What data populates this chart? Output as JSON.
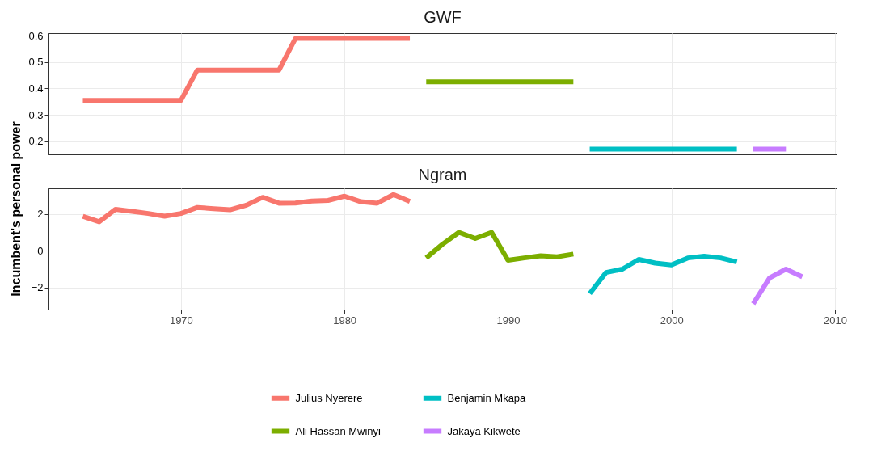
{
  "chart_data": [
    {
      "type": "line",
      "title": "GWF",
      "ylabel": "Incumbent's personal power",
      "xlim": [
        1961.9,
        2010.1
      ],
      "xticks": [
        1970,
        1980,
        1990,
        2000,
        2010
      ],
      "ylim": [
        0.15,
        0.61
      ],
      "yticks": [
        0.2,
        0.3,
        0.4,
        0.5,
        0.6
      ],
      "grid": true,
      "tick_labels": "y",
      "series": [
        {
          "color": "#f8766d",
          "x": [
            1964,
            1965,
            1966,
            1967,
            1968,
            1969,
            1970,
            1971,
            1972,
            1973,
            1974,
            1975,
            1976,
            1977,
            1978,
            1979,
            1980,
            1981,
            1982,
            1983,
            1984
          ],
          "values": [
            0.355,
            0.355,
            0.355,
            0.355,
            0.355,
            0.355,
            0.355,
            0.47,
            0.47,
            0.47,
            0.47,
            0.47,
            0.47,
            0.59,
            0.59,
            0.59,
            0.59,
            0.59,
            0.59,
            0.59,
            0.59
          ]
        },
        {
          "color": "#7cae00",
          "x": [
            1985,
            1986,
            1987,
            1988,
            1989,
            1990,
            1991,
            1992,
            1993,
            1994
          ],
          "values": [
            0.425,
            0.425,
            0.425,
            0.425,
            0.425,
            0.425,
            0.425,
            0.425,
            0.425,
            0.425
          ]
        },
        {
          "color": "#00bfc4",
          "x": [
            1995,
            1996,
            1997,
            1998,
            1999,
            2000,
            2001,
            2002,
            2003,
            2004
          ],
          "values": [
            0.17,
            0.17,
            0.17,
            0.17,
            0.17,
            0.17,
            0.17,
            0.17,
            0.17,
            0.17
          ]
        },
        {
          "color": "#c77cff",
          "x": [
            2005,
            2006,
            2007
          ],
          "values": [
            0.17,
            0.17,
            0.17
          ]
        }
      ]
    },
    {
      "type": "line",
      "title": "Ngram",
      "xlim": [
        1961.9,
        2010.1
      ],
      "xticks": [
        1970,
        1980,
        1990,
        2000,
        2010
      ],
      "ylim": [
        -3.2,
        3.4
      ],
      "yticks": [
        -2,
        0,
        2
      ],
      "grid": true,
      "legend": "bottom",
      "series": [
        {
          "name": "Julius Nyerere",
          "color": "#f8766d",
          "x": [
            1964,
            1965,
            1966,
            1967,
            1968,
            1969,
            1970,
            1971,
            1972,
            1973,
            1974,
            1975,
            1976,
            1977,
            1978,
            1979,
            1980,
            1981,
            1982,
            1983,
            1984
          ],
          "values": [
            1.88,
            1.58,
            2.26,
            2.15,
            2.03,
            1.88,
            2.03,
            2.36,
            2.29,
            2.23,
            2.48,
            2.91,
            2.59,
            2.6,
            2.71,
            2.74,
            2.97,
            2.67,
            2.59,
            3.06,
            2.68
          ]
        },
        {
          "name": "Ali Hassan Mwinyi",
          "color": "#7cae00",
          "x": [
            1985,
            1986,
            1987,
            1988,
            1989,
            1990,
            1991,
            1992,
            1993,
            1994
          ],
          "values": [
            -0.39,
            0.36,
            1.0,
            0.67,
            1.0,
            -0.52,
            -0.39,
            -0.27,
            -0.33,
            -0.18
          ]
        },
        {
          "name": "Benjamin Mkapa",
          "color": "#00bfc4",
          "x": [
            1995,
            1996,
            1997,
            1998,
            1999,
            2000,
            2001,
            2002,
            2003,
            2004
          ],
          "values": [
            -2.33,
            -1.18,
            -1.0,
            -0.47,
            -0.67,
            -0.77,
            -0.39,
            -0.3,
            -0.39,
            -0.61
          ]
        },
        {
          "name": "Jakaya Kikwete",
          "color": "#c77cff",
          "x": [
            2005,
            2006,
            2007,
            2008
          ],
          "values": [
            -2.89,
            -1.48,
            -1.0,
            -1.42
          ]
        }
      ]
    }
  ]
}
